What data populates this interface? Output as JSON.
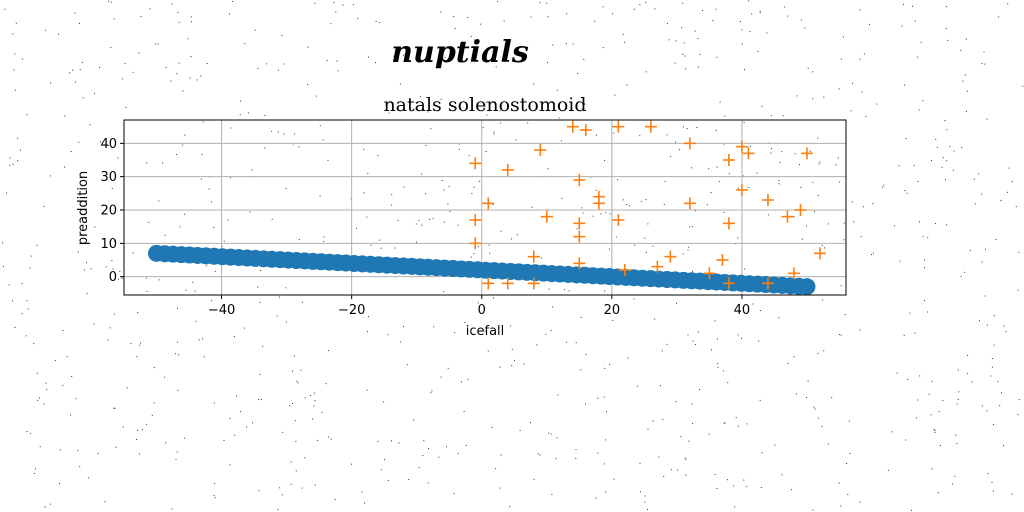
{
  "figure": {
    "suptitle": "nuptials"
  },
  "chart_data": {
    "type": "scatter",
    "title": "natals solenostomoid",
    "xlabel": "icefall",
    "ylabel": "preaddition",
    "xlim": [
      -55,
      56
    ],
    "ylim": [
      -5.5,
      47
    ],
    "xticks": [
      -40,
      -20,
      0,
      20,
      40
    ],
    "yticks": [
      0,
      10,
      20,
      30,
      40
    ],
    "grid": true,
    "colors": {
      "circles": "#1f77b4",
      "pluses": "#ff7f0e",
      "grid": "#b0b0b0"
    },
    "series": [
      {
        "marker": "circle",
        "x_start": -50,
        "x_end": 50,
        "count": 80,
        "y_at_start": 7,
        "y_at_end": -3
      },
      {
        "marker": "plus",
        "points": [
          [
            -1,
            34
          ],
          [
            -1,
            17
          ],
          [
            -1,
            10
          ],
          [
            1,
            22
          ],
          [
            1,
            -2
          ],
          [
            4,
            32
          ],
          [
            4,
            -2
          ],
          [
            8,
            6
          ],
          [
            8,
            -2
          ],
          [
            9,
            38
          ],
          [
            10,
            18
          ],
          [
            14,
            45
          ],
          [
            15,
            29
          ],
          [
            15,
            16
          ],
          [
            15,
            12
          ],
          [
            15,
            4
          ],
          [
            16,
            44
          ],
          [
            18,
            24
          ],
          [
            18,
            22
          ],
          [
            21,
            45
          ],
          [
            21,
            17
          ],
          [
            22,
            2
          ],
          [
            26,
            45
          ],
          [
            27,
            3
          ],
          [
            29,
            6
          ],
          [
            32,
            40
          ],
          [
            32,
            22
          ],
          [
            35,
            1
          ],
          [
            37,
            5
          ],
          [
            38,
            35
          ],
          [
            38,
            16
          ],
          [
            38,
            -2
          ],
          [
            40,
            39
          ],
          [
            40,
            26
          ],
          [
            41,
            37
          ],
          [
            44,
            23
          ],
          [
            44,
            -2
          ],
          [
            47,
            18
          ],
          [
            48,
            1
          ],
          [
            49,
            20
          ],
          [
            50,
            37
          ],
          [
            52,
            7
          ]
        ]
      }
    ]
  }
}
